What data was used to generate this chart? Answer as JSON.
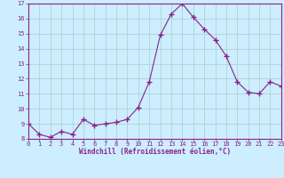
{
  "x": [
    0,
    1,
    2,
    3,
    4,
    5,
    6,
    7,
    8,
    9,
    10,
    11,
    12,
    13,
    14,
    15,
    16,
    17,
    18,
    19,
    20,
    21,
    22,
    23
  ],
  "y": [
    9.0,
    8.3,
    8.1,
    8.5,
    8.3,
    9.3,
    8.9,
    9.0,
    9.1,
    9.3,
    10.1,
    11.8,
    14.9,
    16.3,
    17.0,
    16.1,
    15.3,
    14.6,
    13.5,
    11.8,
    11.1,
    11.0,
    11.8,
    11.5
  ],
  "line_color": "#882288",
  "marker": "+",
  "marker_size": 4,
  "bg_color": "#cceeff",
  "grid_color": "#aacccc",
  "xlabel": "Windchill (Refroidissement éolien,°C)",
  "xlabel_color": "#882288",
  "tick_color": "#882288",
  "spine_color": "#882288",
  "ylim": [
    8,
    17
  ],
  "xlim": [
    0,
    23
  ],
  "yticks": [
    8,
    9,
    10,
    11,
    12,
    13,
    14,
    15,
    16,
    17
  ],
  "xticks": [
    0,
    1,
    2,
    3,
    4,
    5,
    6,
    7,
    8,
    9,
    10,
    11,
    12,
    13,
    14,
    15,
    16,
    17,
    18,
    19,
    20,
    21,
    22,
    23
  ],
  "tick_fontsize": 5.0,
  "xlabel_fontsize": 5.5
}
